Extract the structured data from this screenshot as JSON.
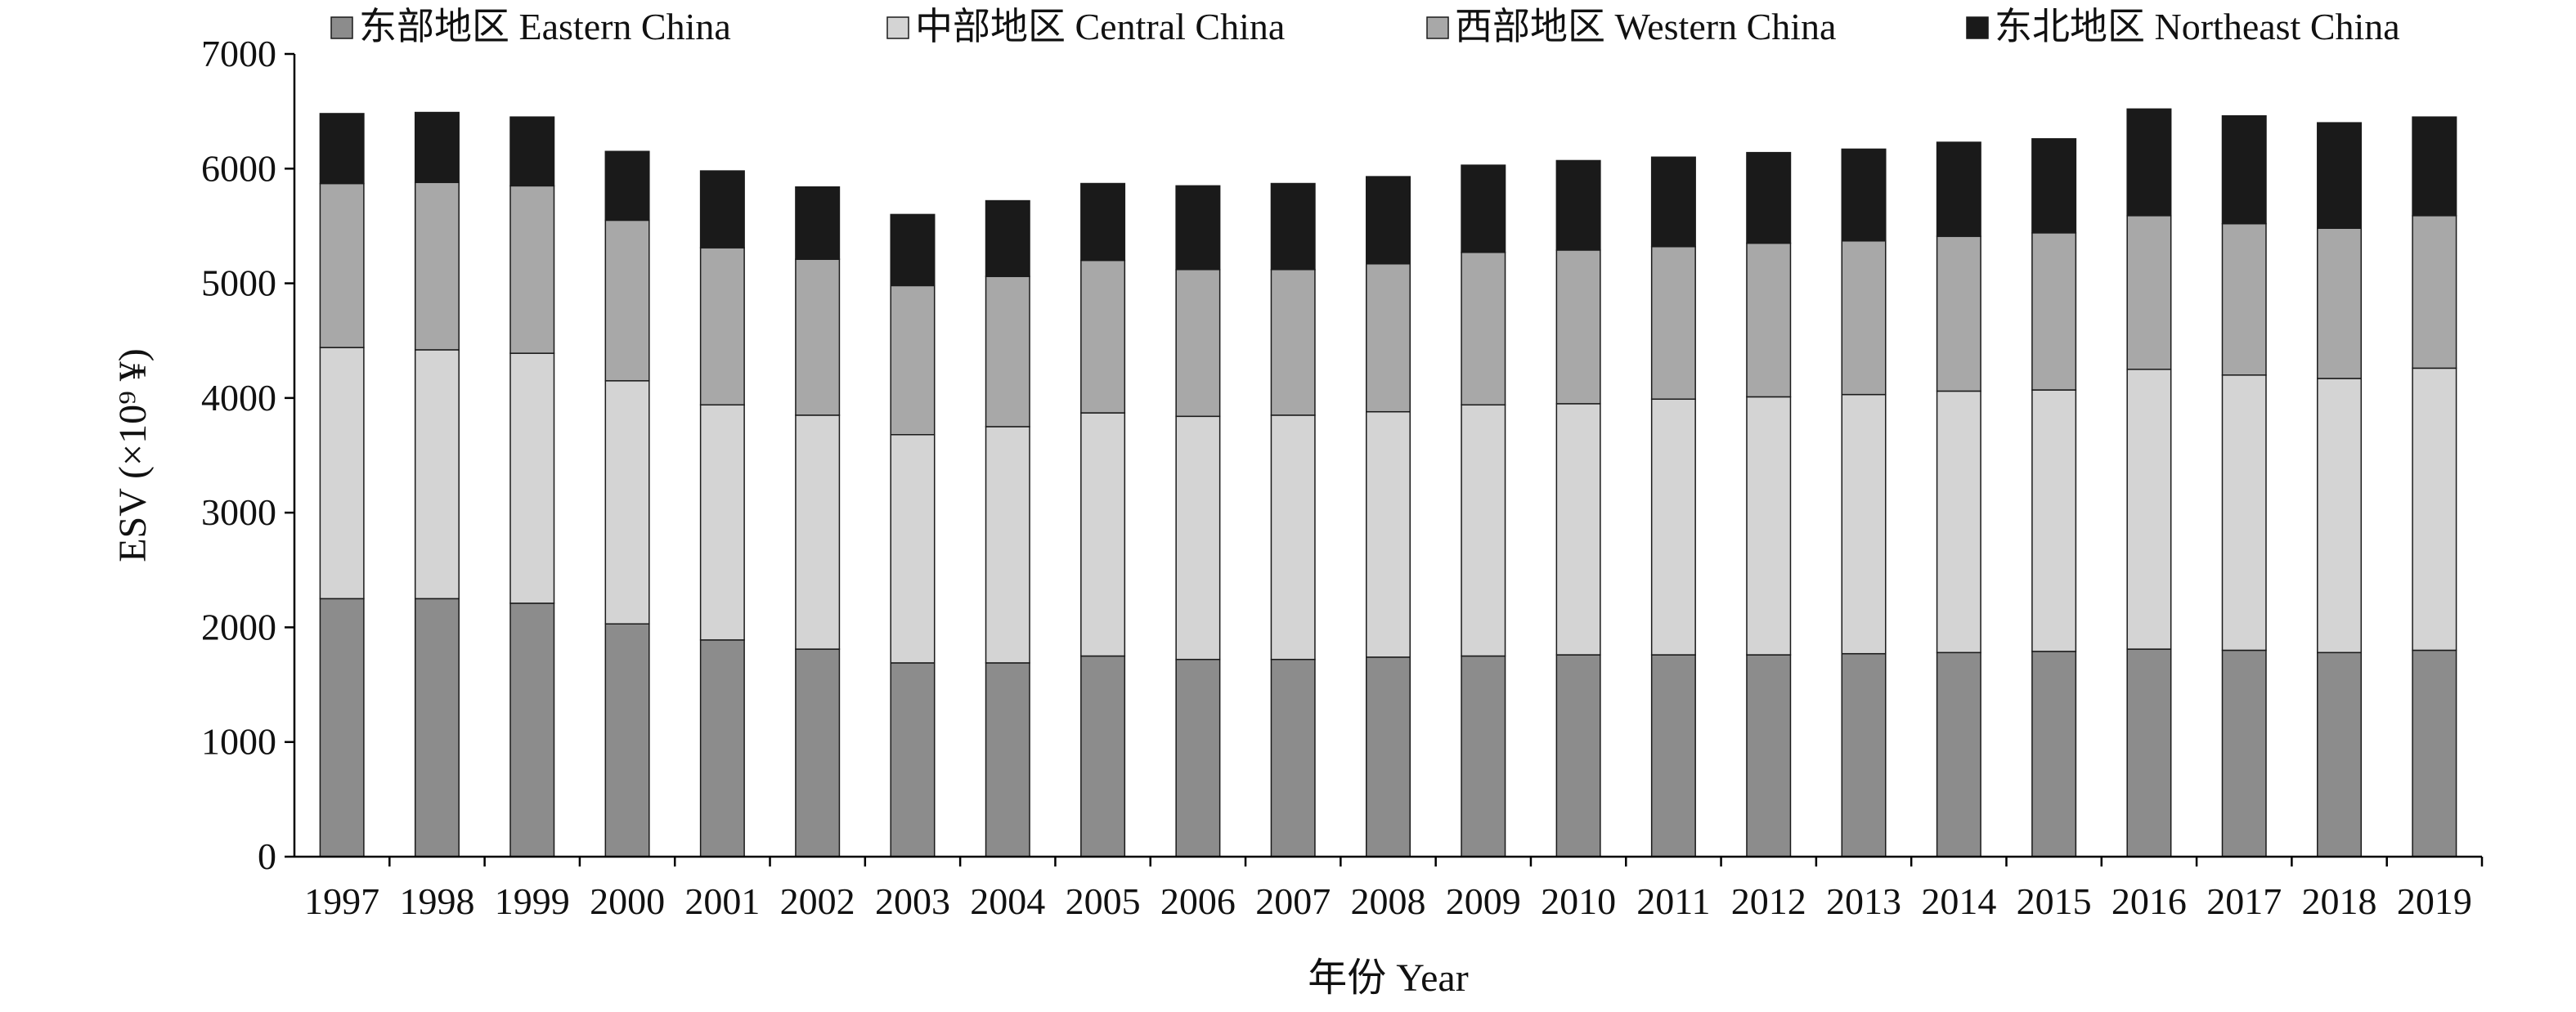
{
  "chart_data": {
    "type": "bar",
    "stacked": true,
    "title": "",
    "xlabel": "年份 Year",
    "ylabel": "ESV (×10⁹ ¥)",
    "ylim": [
      0,
      7000
    ],
    "yticks": [
      0,
      1000,
      2000,
      3000,
      4000,
      5000,
      6000,
      7000
    ],
    "grid": false,
    "legend_position": "top",
    "categories": [
      "1997",
      "1998",
      "1999",
      "2000",
      "2001",
      "2002",
      "2003",
      "2004",
      "2005",
      "2006",
      "2007",
      "2008",
      "2009",
      "2010",
      "2011",
      "2012",
      "2013",
      "2014",
      "2015",
      "2016",
      "2017",
      "2018",
      "2019"
    ],
    "series": [
      {
        "name": "东部地区 Eastern China",
        "color": "#8c8c8c",
        "values": [
          2250,
          2250,
          2210,
          2030,
          1890,
          1810,
          1690,
          1690,
          1750,
          1720,
          1720,
          1740,
          1750,
          1760,
          1760,
          1760,
          1770,
          1780,
          1790,
          1810,
          1800,
          1780,
          1800
        ]
      },
      {
        "name": "中部地区 Central China",
        "color": "#d4d4d4",
        "values": [
          2190,
          2170,
          2180,
          2120,
          2050,
          2040,
          1990,
          2060,
          2120,
          2120,
          2130,
          2140,
          2190,
          2190,
          2230,
          2250,
          2260,
          2280,
          2280,
          2440,
          2400,
          2390,
          2460
        ]
      },
      {
        "name": "西部地区 Western China",
        "color": "#a8a8a8",
        "values": [
          1430,
          1460,
          1460,
          1400,
          1370,
          1360,
          1300,
          1310,
          1330,
          1280,
          1270,
          1290,
          1330,
          1340,
          1330,
          1340,
          1340,
          1350,
          1370,
          1340,
          1320,
          1310,
          1330
        ]
      },
      {
        "name": "东北地区 Northeast China",
        "color": "#1a1a1a",
        "values": [
          610,
          610,
          600,
          600,
          670,
          630,
          620,
          660,
          670,
          730,
          750,
          760,
          760,
          780,
          780,
          790,
          800,
          820,
          820,
          930,
          940,
          920,
          860
        ]
      }
    ]
  }
}
